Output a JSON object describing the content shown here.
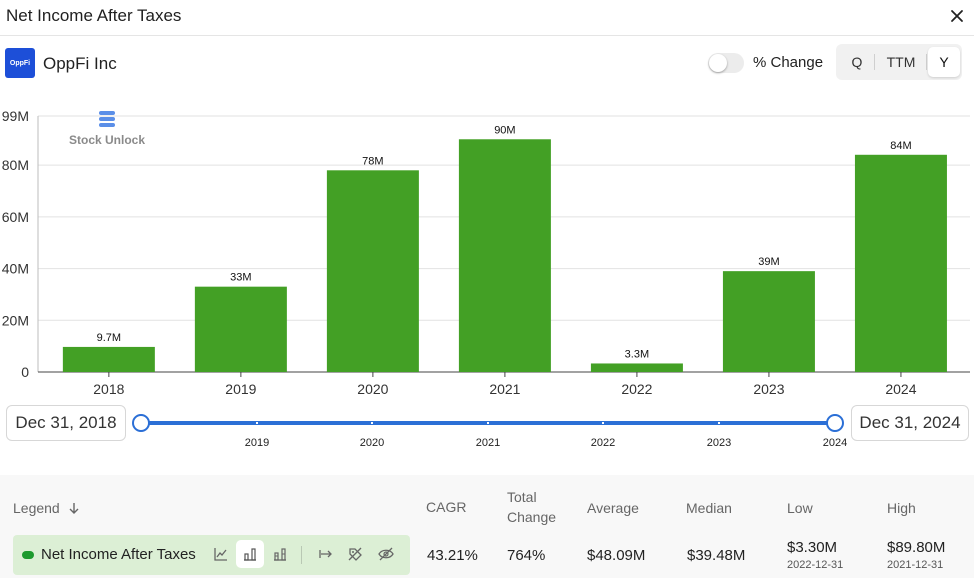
{
  "dialog": {
    "title": "Net Income After Taxes"
  },
  "company": {
    "name": "OppFi Inc",
    "logo_text": "OppFi"
  },
  "controls": {
    "pct_change_label": "% Change",
    "periods": [
      "Q",
      "TTM",
      "Y"
    ],
    "active_period": "Y"
  },
  "watermark": {
    "text": "Stock Unlock"
  },
  "chart_data": {
    "type": "bar",
    "title": "Net Income After Taxes",
    "categories": [
      "2018",
      "2019",
      "2020",
      "2021",
      "2022",
      "2023",
      "2024"
    ],
    "values": [
      9.7,
      33,
      78,
      90,
      3.3,
      39,
      84
    ],
    "data_labels": [
      "9.7M",
      "33M",
      "78M",
      "90M",
      "3.3M",
      "39M",
      "84M"
    ],
    "y_ticks": [
      0,
      20,
      40,
      60,
      80,
      99
    ],
    "y_tick_labels": [
      "0",
      "20M",
      "40M",
      "60M",
      "80M",
      "99M"
    ],
    "ylim": [
      0,
      99
    ],
    "units": "M",
    "color": "#43a025",
    "grid": true
  },
  "range": {
    "start": "Dec 31, 2018",
    "end": "Dec 31, 2024",
    "tick_labels": [
      "2019",
      "2020",
      "2021",
      "2022",
      "2023",
      "2024"
    ]
  },
  "table": {
    "legend_header": "Legend",
    "headers": {
      "cagr": "CAGR",
      "total_change_1": "Total",
      "total_change_2": "Change",
      "average": "Average",
      "median": "Median",
      "low": "Low",
      "high": "High"
    },
    "row": {
      "name": "Net Income After Taxes",
      "color": "#1d9a2e",
      "cagr": "43.21%",
      "total_change": "764%",
      "average": "$48.09M",
      "median": "$39.48M",
      "low": "$3.30M",
      "low_date": "2022-12-31",
      "high": "$89.80M",
      "high_date": "2021-12-31"
    }
  }
}
